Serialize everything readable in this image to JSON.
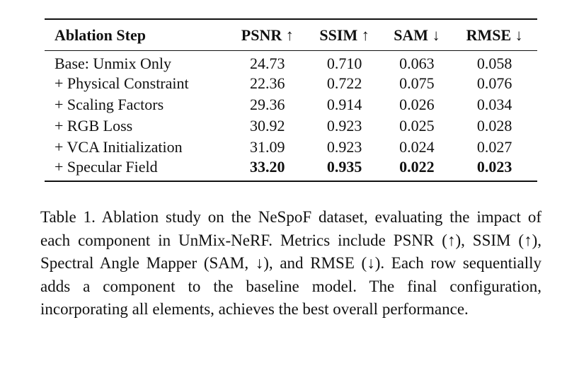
{
  "table": {
    "headers": {
      "step": "Ablation Step",
      "psnr": "PSNR ↑",
      "ssim": "SSIM ↑",
      "sam": "SAM ↓",
      "rmse": "RMSE ↓"
    },
    "rows": [
      {
        "step": "Base: Unmix Only",
        "psnr": "24.73",
        "ssim": "0.710",
        "sam": "0.063",
        "rmse": "0.058"
      },
      {
        "step": "+ Physical Constraint",
        "psnr": "22.36",
        "ssim": "0.722",
        "sam": "0.075",
        "rmse": "0.076"
      },
      {
        "step": "+ Scaling Factors",
        "psnr": "29.36",
        "ssim": "0.914",
        "sam": "0.026",
        "rmse": "0.034"
      },
      {
        "step": "+ RGB Loss",
        "psnr": "30.92",
        "ssim": "0.923",
        "sam": "0.025",
        "rmse": "0.028"
      },
      {
        "step": "+ VCA Initialization",
        "psnr": "31.09",
        "ssim": "0.923",
        "sam": "0.024",
        "rmse": "0.027"
      },
      {
        "step": "+ Specular Field",
        "psnr": "33.20",
        "ssim": "0.935",
        "sam": "0.022",
        "rmse": "0.023"
      }
    ]
  },
  "caption": {
    "label": "Table 1.",
    "text": "Ablation study on the NeSpoF dataset, evaluating the impact of each component in UnMix-NeRF. Metrics include PSNR (↑), SSIM (↑), Spectral Angle Mapper (SAM, ↓), and RMSE (↓). Each row sequentially adds a component to the baseline model. The final configuration, incorporating all elements, achieves the best overall performance."
  }
}
